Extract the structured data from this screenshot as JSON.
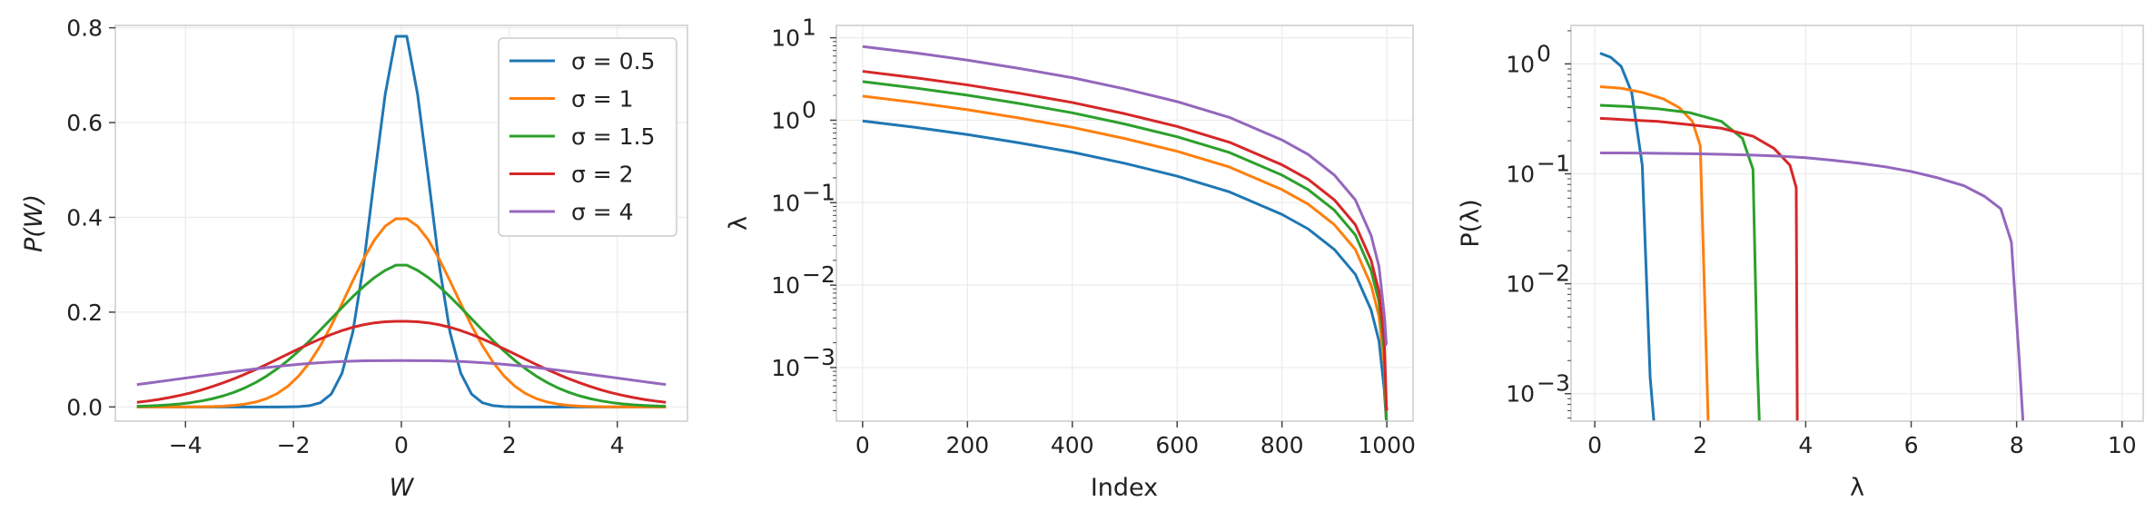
{
  "chart_data": [
    {
      "type": "line",
      "xlabel": "W",
      "ylabel": "P(W)",
      "xlim": [
        -5.3,
        5.3
      ],
      "ylim": [
        -0.03,
        0.805
      ],
      "xticks": [
        -4,
        -2,
        0,
        2,
        4
      ],
      "xtick_labels": [
        "−4",
        "−2",
        "0",
        "2",
        "4"
      ],
      "yticks": [
        0.0,
        0.2,
        0.4,
        0.6,
        0.8
      ],
      "ytick_labels": [
        "0.0",
        "0.2",
        "0.4",
        "0.6",
        "0.8"
      ],
      "grid": true,
      "legend_position": "top-right",
      "series": [
        {
          "name": "σ = 0.5",
          "sigma": 0.5,
          "color": "#1f77b4"
        },
        {
          "name": "σ = 1",
          "sigma": 1,
          "color": "#ff7f0e"
        },
        {
          "name": "σ = 1.5",
          "sigma": 1.5,
          "color": "#2ca02c"
        },
        {
          "name": "σ = 2",
          "sigma": 2,
          "color": "#d62728"
        },
        {
          "name": "σ = 4",
          "sigma": 4,
          "color": "#9467bd"
        }
      ],
      "x": [
        -4.9,
        -4.7,
        -4.5,
        -4.3,
        -4.1,
        -3.9,
        -3.7,
        -3.5,
        -3.3,
        -3.1,
        -2.9,
        -2.7,
        -2.5,
        -2.3,
        -2.1,
        -1.9,
        -1.7,
        -1.5,
        -1.3,
        -1.1,
        -0.9,
        -0.7,
        -0.5,
        -0.3,
        -0.1,
        0.1,
        0.3,
        0.5,
        0.7,
        0.9,
        1.1,
        1.3,
        1.5,
        1.7,
        1.9,
        2.1,
        2.3,
        2.5,
        2.7,
        2.9,
        3.1,
        3.3,
        3.5,
        3.7,
        3.9,
        4.1,
        4.3,
        4.5,
        4.7,
        4.9
      ],
      "y_series": [
        [
          0.0,
          0.0,
          0.0,
          0.0,
          0.0,
          0.0,
          0.0,
          0.0,
          0.0,
          0.0,
          0.0,
          0.0,
          0.0,
          0.0,
          0.0001,
          0.0006,
          0.0027,
          0.0089,
          0.0272,
          0.0712,
          0.158,
          0.3001,
          0.4839,
          0.6596,
          0.782,
          0.782,
          0.6596,
          0.4839,
          0.3001,
          0.158,
          0.0712,
          0.0272,
          0.0089,
          0.0027,
          0.0006,
          0.0001,
          0.0,
          0.0,
          0.0,
          0.0,
          0.0,
          0.0,
          0.0,
          0.0,
          0.0,
          0.0,
          0.0,
          0.0,
          0.0,
          0.0
        ],
        [
          0.0,
          0.0,
          0.0,
          0.0,
          0.0001,
          0.0002,
          0.0004,
          0.0009,
          0.0017,
          0.0033,
          0.006,
          0.0104,
          0.0175,
          0.0283,
          0.044,
          0.0656,
          0.094,
          0.1295,
          0.1714,
          0.2179,
          0.2661,
          0.3123,
          0.3521,
          0.3814,
          0.397,
          0.397,
          0.3814,
          0.3521,
          0.3123,
          0.2661,
          0.2179,
          0.1714,
          0.1295,
          0.094,
          0.0656,
          0.044,
          0.0283,
          0.0175,
          0.0104,
          0.006,
          0.0033,
          0.0017,
          0.0009,
          0.0004,
          0.0002,
          0.0001,
          0.0,
          0.0,
          0.0,
          0.0
        ],
        [
          0.0013,
          0.002,
          0.003,
          0.0044,
          0.0064,
          0.0091,
          0.0127,
          0.0174,
          0.0234,
          0.0309,
          0.0402,
          0.0515,
          0.065,
          0.0806,
          0.0983,
          0.1181,
          0.1396,
          0.1625,
          0.1861,
          0.2098,
          0.2328,
          0.2541,
          0.2729,
          0.2882,
          0.2991,
          0.2991,
          0.2882,
          0.2729,
          0.2541,
          0.2328,
          0.2098,
          0.1861,
          0.1625,
          0.1396,
          0.1181,
          0.0983,
          0.0806,
          0.065,
          0.0515,
          0.0402,
          0.0309,
          0.0234,
          0.0174,
          0.0127,
          0.0091,
          0.0064,
          0.0044,
          0.003,
          0.002,
          0.0013
        ],
        [
          0.0098,
          0.0125,
          0.0158,
          0.0198,
          0.0244,
          0.0298,
          0.036,
          0.0431,
          0.051,
          0.0596,
          0.069,
          0.079,
          0.0896,
          0.1006,
          0.1117,
          0.1227,
          0.1334,
          0.1435,
          0.1529,
          0.1611,
          0.168,
          0.1735,
          0.1774,
          0.1797,
          0.1806,
          0.1806,
          0.1797,
          0.1774,
          0.1735,
          0.168,
          0.1611,
          0.1529,
          0.1435,
          0.1334,
          0.1227,
          0.1117,
          0.1006,
          0.0896,
          0.079,
          0.069,
          0.0596,
          0.051,
          0.0431,
          0.036,
          0.0298,
          0.0244,
          0.0198,
          0.0158,
          0.0125,
          0.0098
        ],
        [
          0.0472,
          0.0502,
          0.0532,
          0.0563,
          0.0594,
          0.0625,
          0.0656,
          0.0687,
          0.0717,
          0.0747,
          0.0776,
          0.0803,
          0.083,
          0.0855,
          0.0878,
          0.0899,
          0.0918,
          0.0934,
          0.0948,
          0.0959,
          0.0967,
          0.0973,
          0.0976,
          0.0977,
          0.0978,
          0.0978,
          0.0977,
          0.0976,
          0.0973,
          0.0967,
          0.0959,
          0.0948,
          0.0934,
          0.0918,
          0.0899,
          0.0878,
          0.0855,
          0.083,
          0.0803,
          0.0776,
          0.0747,
          0.0717,
          0.0687,
          0.0656,
          0.0625,
          0.0594,
          0.0563,
          0.0532,
          0.0502,
          0.0472
        ]
      ]
    },
    {
      "type": "line",
      "xlabel": "Index",
      "ylabel": "λ",
      "y_scale": "log",
      "xlim": [
        -50,
        1050
      ],
      "ylim_log10": [
        -3.65,
        1.15
      ],
      "xticks": [
        0,
        200,
        400,
        600,
        800,
        1000
      ],
      "xtick_labels": [
        "0",
        "200",
        "400",
        "600",
        "800",
        "1000"
      ],
      "yticks_log10": [
        -3,
        -2,
        -1,
        0,
        1
      ],
      "ytick_labels": [
        "10-3",
        "10-2",
        "10-1",
        "100",
        "101"
      ],
      "grid": true,
      "series": [
        {
          "sigma": 0.5,
          "color": "#1f77b4"
        },
        {
          "sigma": 1,
          "color": "#ff7f0e"
        },
        {
          "sigma": 1.5,
          "color": "#2ca02c"
        },
        {
          "sigma": 2,
          "color": "#d62728"
        },
        {
          "sigma": 4,
          "color": "#9467bd"
        }
      ],
      "x": [
        0,
        100,
        200,
        300,
        400,
        500,
        600,
        700,
        800,
        850,
        900,
        940,
        970,
        985,
        995,
        999,
        1000
      ],
      "y_series": [
        [
          0.98,
          0.82,
          0.67,
          0.53,
          0.41,
          0.3,
          0.21,
          0.135,
          0.072,
          0.048,
          0.027,
          0.0135,
          0.005,
          0.0021,
          0.00055,
          8e-05,
          2e-05
        ],
        [
          1.96,
          1.64,
          1.34,
          1.06,
          0.82,
          0.6,
          0.42,
          0.27,
          0.144,
          0.096,
          0.054,
          0.027,
          0.01,
          0.0042,
          0.0011,
          0.00016,
          4e-05
        ],
        [
          2.94,
          2.46,
          2.01,
          1.59,
          1.23,
          0.9,
          0.63,
          0.405,
          0.216,
          0.144,
          0.081,
          0.0405,
          0.015,
          0.0063,
          0.00165,
          0.00024,
          6e-05
        ],
        [
          3.92,
          3.28,
          2.68,
          2.12,
          1.64,
          1.2,
          0.84,
          0.54,
          0.288,
          0.192,
          0.108,
          0.054,
          0.02,
          0.0084,
          0.0022,
          0.00035,
          0.0003
        ],
        [
          7.84,
          6.56,
          5.36,
          4.24,
          3.28,
          2.4,
          1.68,
          1.08,
          0.576,
          0.384,
          0.216,
          0.108,
          0.04,
          0.0168,
          0.0044,
          0.0019,
          0.0019
        ]
      ]
    },
    {
      "type": "line",
      "xlabel": "λ",
      "ylabel": "P(λ)",
      "y_scale": "log",
      "xlim": [
        -0.45,
        10.4
      ],
      "ylim_log10": [
        -3.25,
        0.35
      ],
      "xticks": [
        0,
        2,
        4,
        6,
        8,
        10
      ],
      "xtick_labels": [
        "0",
        "2",
        "4",
        "6",
        "8",
        "10"
      ],
      "yticks_log10": [
        -3,
        -2,
        -1,
        0
      ],
      "ytick_labels": [
        "10-3",
        "10-2",
        "10-1",
        "100"
      ],
      "grid": true,
      "series": [
        {
          "sigma": 0.5,
          "color": "#1f77b4",
          "x": [
            0.1,
            0.3,
            0.5,
            0.7,
            0.9,
            1.05,
            1.12
          ],
          "y": [
            1.25,
            1.15,
            0.95,
            0.55,
            0.12,
            0.0014,
            0.0005
          ]
        },
        {
          "sigma": 1,
          "color": "#ff7f0e",
          "x": [
            0.1,
            0.5,
            0.9,
            1.3,
            1.6,
            1.85,
            2.0,
            2.1,
            2.15
          ],
          "y": [
            0.62,
            0.6,
            0.55,
            0.48,
            0.4,
            0.3,
            0.18,
            0.004,
            0.0005
          ]
        },
        {
          "sigma": 1.5,
          "color": "#2ca02c",
          "x": [
            0.1,
            0.6,
            1.2,
            1.8,
            2.4,
            2.8,
            3.0,
            3.08,
            3.12
          ],
          "y": [
            0.42,
            0.41,
            0.39,
            0.36,
            0.3,
            0.21,
            0.11,
            0.002,
            0.0005
          ]
        },
        {
          "sigma": 2,
          "color": "#d62728",
          "x": [
            0.1,
            0.6,
            1.2,
            1.8,
            2.4,
            3.0,
            3.4,
            3.7,
            3.82,
            3.84
          ],
          "y": [
            0.32,
            0.31,
            0.3,
            0.28,
            0.26,
            0.22,
            0.17,
            0.12,
            0.075,
            0.0005
          ]
        },
        {
          "sigma": 4,
          "color": "#9467bd",
          "x": [
            0.1,
            0.5,
            1.0,
            1.5,
            2.0,
            2.5,
            3.0,
            3.5,
            4.0,
            4.5,
            5.0,
            5.5,
            6.0,
            6.5,
            7.0,
            7.4,
            7.7,
            7.9,
            8.05,
            8.12
          ],
          "y": [
            0.155,
            0.155,
            0.154,
            0.153,
            0.152,
            0.15,
            0.148,
            0.145,
            0.14,
            0.133,
            0.125,
            0.116,
            0.105,
            0.092,
            0.078,
            0.062,
            0.048,
            0.024,
            0.002,
            0.0005
          ]
        }
      ]
    }
  ]
}
